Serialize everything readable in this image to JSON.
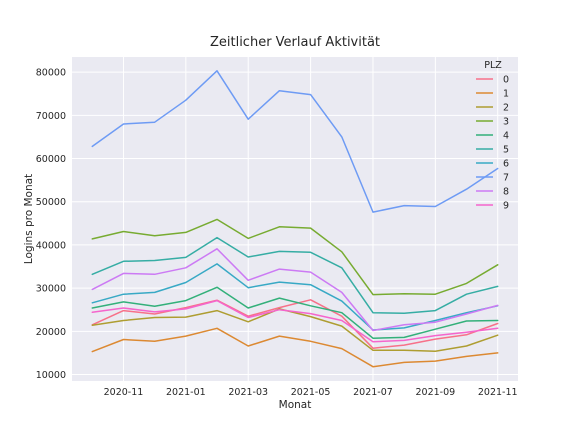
{
  "chart_data": {
    "type": "line",
    "title": "Zeitlicher Verlauf Aktivität",
    "xlabel": "Monat",
    "ylabel": "Logins pro Monat",
    "x": [
      "2020-10",
      "2020-11",
      "2020-12",
      "2021-01",
      "2021-02",
      "2021-03",
      "2021-04",
      "2021-05",
      "2021-06",
      "2021-07",
      "2021-08",
      "2021-09",
      "2021-10",
      "2021-11"
    ],
    "x_ticks": [
      "2020-11",
      "2021-01",
      "2021-03",
      "2021-05",
      "2021-07",
      "2021-09",
      "2021-11"
    ],
    "y_ticks": [
      10000,
      20000,
      30000,
      40000,
      50000,
      60000,
      70000,
      80000
    ],
    "ylim": [
      8500,
      83500
    ],
    "grid": true,
    "legend": {
      "title": "PLZ",
      "placement": "top-right"
    },
    "series": [
      {
        "name": "0",
        "color": "#f77189",
        "values": [
          21500,
          24800,
          24000,
          25500,
          27200,
          23500,
          25500,
          27300,
          23500,
          16100,
          16800,
          18200,
          19200,
          21800
        ]
      },
      {
        "name": "1",
        "color": "#dc8932",
        "values": [
          15300,
          18100,
          17700,
          18900,
          20700,
          16600,
          18900,
          17700,
          16000,
          11800,
          12800,
          13100,
          14200,
          15000
        ]
      },
      {
        "name": "2",
        "color": "#ae9d31",
        "values": [
          21400,
          22500,
          23200,
          23300,
          24800,
          22200,
          25200,
          23400,
          21200,
          15600,
          15600,
          15400,
          16600,
          19100
        ]
      },
      {
        "name": "3",
        "color": "#77ab31",
        "values": [
          41400,
          43100,
          42100,
          42900,
          45900,
          41500,
          44200,
          43900,
          38400,
          28500,
          28700,
          28600,
          31100,
          35400
        ]
      },
      {
        "name": "4",
        "color": "#33b07a",
        "values": [
          25400,
          26800,
          25800,
          27100,
          30200,
          25400,
          27700,
          25900,
          24300,
          18400,
          18600,
          20500,
          22400,
          22500
        ]
      },
      {
        "name": "5",
        "color": "#36ada4",
        "values": [
          33200,
          36200,
          36400,
          37100,
          41700,
          37200,
          38500,
          38300,
          34700,
          24300,
          24200,
          24800,
          28600,
          30400
        ]
      },
      {
        "name": "6",
        "color": "#38a9c5",
        "values": [
          26600,
          28600,
          29000,
          31300,
          35600,
          30100,
          31400,
          30800,
          27000,
          20300,
          20800,
          22500,
          24300,
          25900
        ]
      },
      {
        "name": "7",
        "color": "#6e9bf4",
        "values": [
          62800,
          68000,
          68400,
          73500,
          80300,
          69100,
          75700,
          74800,
          65000,
          47600,
          49100,
          48900,
          52900,
          57700
        ]
      },
      {
        "name": "8",
        "color": "#cc7af4",
        "values": [
          29700,
          33400,
          33200,
          34700,
          39100,
          31800,
          34400,
          33700,
          29000,
          20200,
          21500,
          22100,
          24000,
          26000
        ]
      },
      {
        "name": "9",
        "color": "#f565cc",
        "values": [
          24400,
          25400,
          24500,
          25200,
          27100,
          23200,
          25000,
          24100,
          22500,
          17600,
          17900,
          19000,
          19800,
          20700
        ]
      }
    ]
  }
}
